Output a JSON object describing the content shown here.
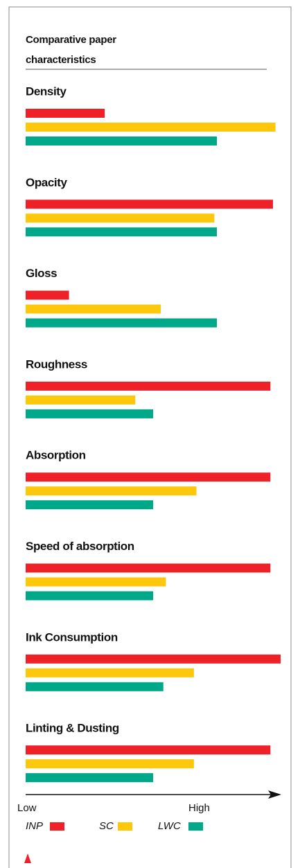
{
  "chart_data": {
    "type": "bar",
    "orientation": "horizontal",
    "title": "Comparative paper characteristics",
    "categories": [
      "Density",
      "Opacity",
      "Gloss",
      "Roughness",
      "Absorption",
      "Speed of absorption",
      "Ink Consumption",
      "Linting & Dusting"
    ],
    "series": [
      {
        "name": "INP",
        "color": "#ee2128",
        "values": [
          31,
          97,
          17,
          96,
          96,
          96,
          100,
          96
        ]
      },
      {
        "name": "SC",
        "color": "#fdc70c",
        "values": [
          98,
          74,
          53,
          43,
          67,
          55,
          66,
          66
        ]
      },
      {
        "name": "LWC",
        "color": "#00a88a",
        "values": [
          75,
          75,
          75,
          50,
          50,
          50,
          54,
          50
        ]
      }
    ],
    "xlim": [
      0,
      100
    ],
    "axis_low_label": "Low",
    "axis_high_label": "High",
    "legend": "bottom"
  }
}
